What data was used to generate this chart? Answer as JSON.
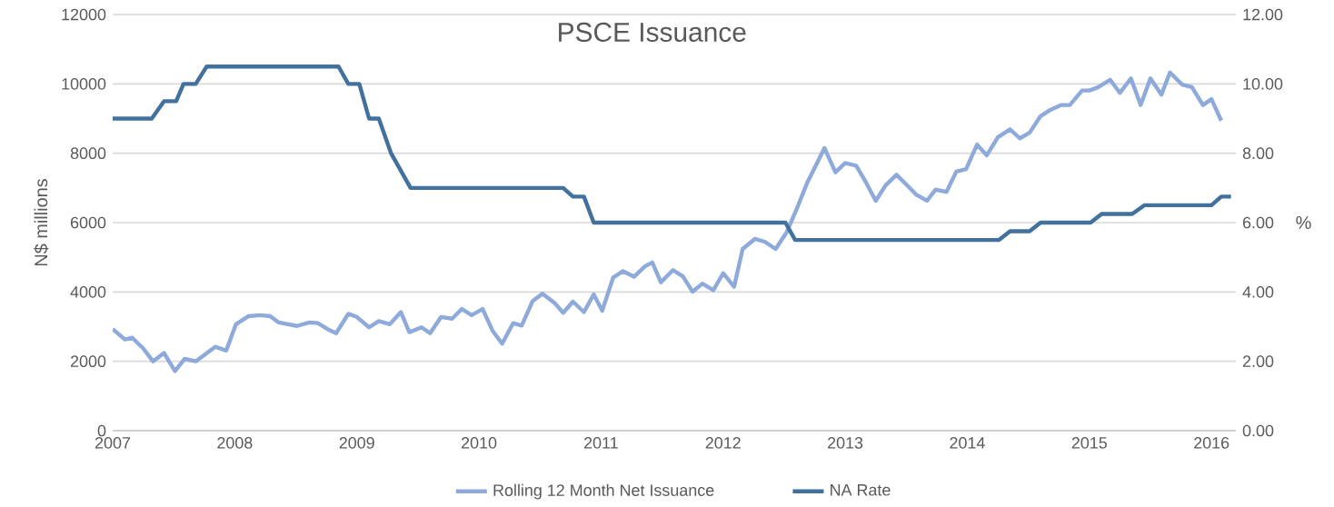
{
  "chart_data": {
    "type": "line",
    "title": "PSCE Issuance",
    "ylabel": "N$ millions",
    "y2label": "%",
    "xlim": [
      2007,
      2016.2
    ],
    "xticks": [
      2007,
      2008,
      2009,
      2010,
      2011,
      2012,
      2013,
      2014,
      2015,
      2016
    ],
    "ylim": [
      0,
      12000
    ],
    "yticks": [
      0,
      2000,
      4000,
      6000,
      8000,
      10000,
      12000
    ],
    "y2lim": [
      0,
      12
    ],
    "y2ticks": [
      {
        "value": 0,
        "label": "0.00"
      },
      {
        "value": 2,
        "label": "2.00"
      },
      {
        "value": 4,
        "label": "4.00"
      },
      {
        "value": 6,
        "label": "6.00"
      },
      {
        "value": 8,
        "label": "8.00"
      },
      {
        "value": 10,
        "label": "10.00"
      },
      {
        "value": 12,
        "label": "12.00"
      }
    ],
    "grid": "y",
    "legend": "bottom",
    "marker": "none",
    "line_style": "solid",
    "series": [
      {
        "name": "Rolling 12 Month Net Issuance",
        "color": "#8eaadb",
        "x": [
          2007.0,
          2007.1,
          2007.16,
          2007.25,
          2007.33,
          2007.42,
          2007.51,
          2007.59,
          2007.68,
          2007.84,
          2007.93,
          2008.01,
          2008.11,
          2008.21,
          2008.29,
          2008.36,
          2008.51,
          2008.61,
          2008.68,
          2008.76,
          2008.83,
          2008.93,
          2009.0,
          2009.1,
          2009.18,
          2009.27,
          2009.36,
          2009.43,
          2009.53,
          2009.6,
          2009.69,
          2009.78,
          2009.86,
          2009.94,
          2010.03,
          2010.11,
          2010.19,
          2010.28,
          2010.35,
          2010.44,
          2010.52,
          2010.62,
          2010.69,
          2010.77,
          2010.86,
          2010.94,
          2011.01,
          2011.1,
          2011.18,
          2011.27,
          2011.36,
          2011.42,
          2011.49,
          2011.59,
          2011.67,
          2011.75,
          2011.83,
          2011.92,
          2012.0,
          2012.09,
          2012.16,
          2012.26,
          2012.34,
          2012.43,
          2012.52,
          2012.6,
          2012.69,
          2012.77,
          2012.83,
          2012.92,
          2013.0,
          2013.09,
          2013.17,
          2013.25,
          2013.33,
          2013.42,
          2013.5,
          2013.58,
          2013.67,
          2013.74,
          2013.83,
          2013.91,
          2013.99,
          2014.08,
          2014.16,
          2014.25,
          2014.35,
          2014.43,
          2014.51,
          2014.6,
          2014.68,
          2014.77,
          2014.84,
          2014.94,
          2015.0,
          2015.07,
          2015.17,
          2015.25,
          2015.34,
          2015.42,
          2015.5,
          2015.59,
          2015.66,
          2015.76,
          2015.84,
          2015.93,
          2016.0,
          2016.08
        ],
        "values": [
          2930,
          2630,
          2680,
          2370,
          2000,
          2240,
          1720,
          2070,
          2000,
          2420,
          2310,
          3070,
          3300,
          3330,
          3300,
          3120,
          3020,
          3120,
          3100,
          2930,
          2810,
          3370,
          3280,
          2980,
          3160,
          3070,
          3420,
          2840,
          2980,
          2810,
          3280,
          3230,
          3510,
          3330,
          3510,
          2890,
          2510,
          3100,
          3030,
          3740,
          3950,
          3680,
          3400,
          3720,
          3420,
          3930,
          3460,
          4420,
          4600,
          4440,
          4740,
          4850,
          4280,
          4630,
          4450,
          4010,
          4240,
          4050,
          4540,
          4150,
          5240,
          5530,
          5450,
          5240,
          5720,
          6370,
          7160,
          7720,
          8150,
          7450,
          7720,
          7640,
          7160,
          6630,
          7070,
          7380,
          7100,
          6810,
          6630,
          6950,
          6890,
          7470,
          7540,
          8250,
          7940,
          8460,
          8690,
          8430,
          8590,
          9070,
          9250,
          9390,
          9390,
          9810,
          9810,
          9900,
          10120,
          9740,
          10160,
          9390,
          10160,
          9690,
          10330,
          9980,
          9910,
          9390,
          9560,
          8940
        ]
      },
      {
        "name": "NA Rate",
        "color": "#41719c",
        "axis": "y2",
        "x": [
          2007.0,
          2007.32,
          2007.42,
          2007.52,
          2007.58,
          2007.68,
          2007.77,
          2008.85,
          2008.93,
          2009.02,
          2009.1,
          2009.18,
          2009.28,
          2009.44,
          2010.69,
          2010.77,
          2010.86,
          2010.94,
          2012.51,
          2012.59,
          2014.26,
          2014.35,
          2014.51,
          2014.6,
          2015.01,
          2015.1,
          2015.35,
          2015.45,
          2016.0,
          2016.08,
          2016.16
        ],
        "values": [
          9.0,
          9.0,
          9.5,
          9.5,
          10.0,
          10.0,
          10.5,
          10.5,
          10.0,
          10.0,
          9.0,
          9.0,
          8.0,
          7.0,
          7.0,
          6.75,
          6.75,
          6.0,
          6.0,
          5.5,
          5.5,
          5.75,
          5.75,
          6.0,
          6.0,
          6.25,
          6.25,
          6.5,
          6.5,
          6.75,
          6.75
        ]
      }
    ]
  }
}
